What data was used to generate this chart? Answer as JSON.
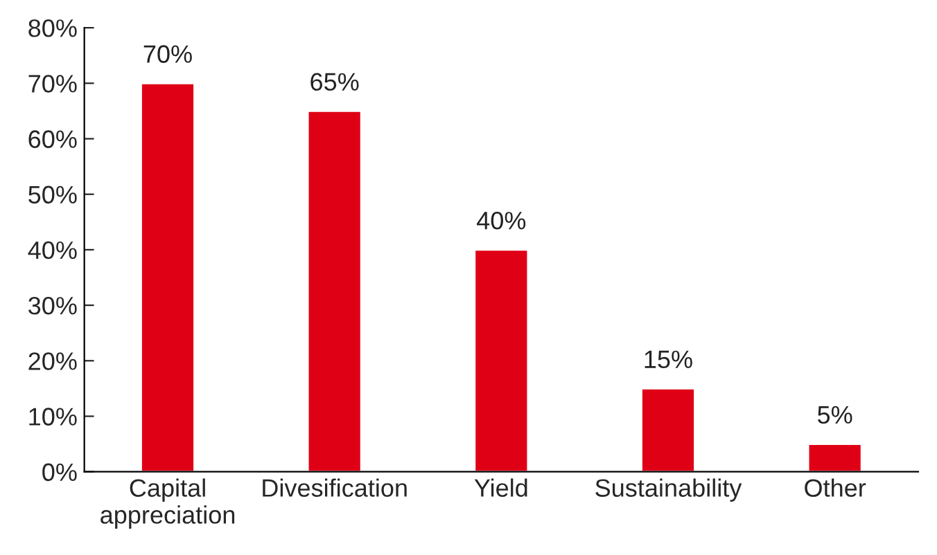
{
  "chart_data": {
    "type": "bar",
    "categories": [
      "Capital\nappreciation",
      "Divesification",
      "Yield",
      "Sustainability",
      "Other"
    ],
    "values": [
      70,
      65,
      40,
      15,
      5
    ],
    "color": "#e00016",
    "value_labels": [
      "70%",
      "65%",
      "40%",
      "15%",
      "5%"
    ],
    "ylim": [
      0,
      80
    ],
    "yticks": [
      {
        "value": 0,
        "label": "0%"
      },
      {
        "value": 10,
        "label": "10%"
      },
      {
        "value": 20,
        "label": "20%"
      },
      {
        "value": 30,
        "label": "30%"
      },
      {
        "value": 40,
        "label": "40%"
      },
      {
        "value": 50,
        "label": "50%"
      },
      {
        "value": 60,
        "label": "60%"
      },
      {
        "value": 70,
        "label": "70%"
      },
      {
        "value": 80,
        "label": "80%"
      }
    ],
    "grid": false
  }
}
